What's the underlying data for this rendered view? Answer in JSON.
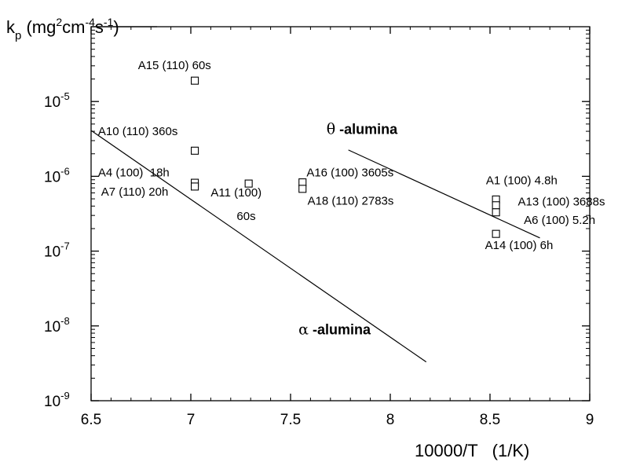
{
  "chart_data": {
    "type": "scatter",
    "xlabel": "10000/T   (1/K)",
    "ylabel": {
      "base": "k",
      "sub": "p",
      "units": "(mg2cm-4s-1)"
    },
    "xlim": [
      6.5,
      9
    ],
    "ylim_log10": [
      -9,
      -4
    ],
    "yscale": "log",
    "x_ticks": [
      "6.5",
      "7",
      "7.5",
      "8",
      "8.5",
      "9"
    ],
    "y_ticks": [
      {
        "exp": -9,
        "base": "10",
        "power": "-9"
      },
      {
        "exp": -8,
        "base": "10",
        "power": "-8"
      },
      {
        "exp": -7,
        "base": "10",
        "power": "-7"
      },
      {
        "exp": -6,
        "base": "10",
        "power": "-6"
      },
      {
        "exp": -5,
        "base": "10",
        "power": "-5"
      }
    ],
    "points": [
      {
        "x": 7.02,
        "y": 1.9e-05
      },
      {
        "x": 7.02,
        "y": 2.2e-06
      },
      {
        "x": 7.02,
        "y": 8.2e-07
      },
      {
        "x": 7.02,
        "y": 7.3e-07
      },
      {
        "x": 7.29,
        "y": 8e-07
      },
      {
        "x": 7.56,
        "y": 8.3e-07
      },
      {
        "x": 7.56,
        "y": 6.8e-07
      },
      {
        "x": 8.53,
        "y": 4.9e-07
      },
      {
        "x": 8.53,
        "y": 4.1e-07
      },
      {
        "x": 8.53,
        "y": 3.3e-07
      },
      {
        "x": 8.53,
        "y": 1.7e-07
      }
    ],
    "annotations": [
      {
        "text": "A15 (110) 60s",
        "x": 6.735,
        "y": 2.7e-05
      },
      {
        "text": "A10 (110) 360s",
        "x": 6.535,
        "y": 3.55e-06
      },
      {
        "text": "A4 (100)  18h",
        "x": 6.535,
        "y": 1e-06
      },
      {
        "text": "A7 (110) 20h",
        "x": 6.55,
        "y": 5.5e-07
      },
      {
        "text": "A11 (100)",
        "x": 7.1,
        "y": 5.4e-07
      },
      {
        "text": "60s",
        "x": 7.23,
        "y": 2.6e-07
      },
      {
        "text": "A16 (100) 3605s",
        "x": 7.58,
        "y": 1e-06
      },
      {
        "text": "A18 (110) 2783s",
        "x": 7.585,
        "y": 4.2e-07
      },
      {
        "text": "A1 (100) 4.8h",
        "x": 8.48,
        "y": 7.8e-07
      },
      {
        "text": "A13 (100) 3688s",
        "x": 8.64,
        "y": 4.1e-07
      },
      {
        "text": "A6 (100) 5.2h",
        "x": 8.67,
        "y": 2.3e-07
      },
      {
        "text": "A14 (100) 6h",
        "x": 8.475,
        "y": 1.07e-07
      }
    ],
    "series": [
      {
        "name": "α -alumina",
        "greek": "α",
        "suffix": " -alumina",
        "x": [
          6.5,
          8.18
        ],
        "y": [
          4.1e-06,
          3.3e-09
        ],
        "label_pos": {
          "x": 7.54,
          "y": 7.7e-09
        }
      },
      {
        "name": "θ -alumina",
        "greek": "θ",
        "suffix": " -alumina",
        "x": [
          7.79,
          8.75
        ],
        "y": [
          2.25e-06,
          1.5e-07
        ],
        "label_pos": {
          "x": 7.68,
          "y": 3.7e-06
        }
      }
    ],
    "grid": false,
    "legend": "none"
  }
}
